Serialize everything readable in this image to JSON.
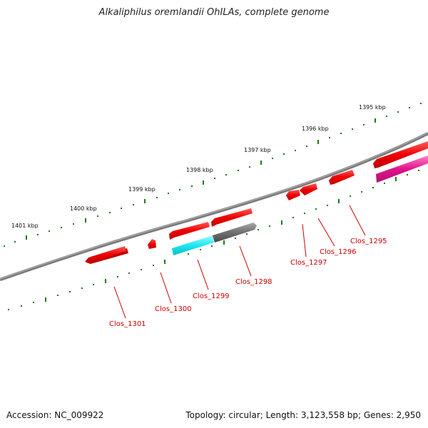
{
  "title": "Alkaliphilus oremlandii OhILAs, complete genome",
  "footer": {
    "accession": "Accession: NC_009922",
    "summary": "Topology: circular; Length: 3,123,558 bp; Genes: 2,950"
  },
  "scale_labels": [
    "1401 kbp",
    "1400 kbp",
    "1399 kbp",
    "1398 kbp",
    "1397 kbp",
    "1396 kbp",
    "1395 kbp"
  ],
  "genes": [
    {
      "label": "Clos_1301",
      "color": "#ff0000"
    },
    {
      "label": "Clos_1300",
      "color": "#ff0000"
    },
    {
      "label": "Clos_1299",
      "color": "#00e5ee"
    },
    {
      "label": "Clos_1298",
      "color": "#666666"
    },
    {
      "label": "Clos_1297",
      "color": "#ff0000"
    },
    {
      "label": "Clos_1296",
      "color": "#ff0000"
    },
    {
      "label": "Clos_1295",
      "color": "#ff1493"
    }
  ],
  "colors": {
    "backbone": "#7a7a7a",
    "ticks": "#1a7a1a",
    "label_text": "#cc0000",
    "leader_line": "#cc0000"
  }
}
